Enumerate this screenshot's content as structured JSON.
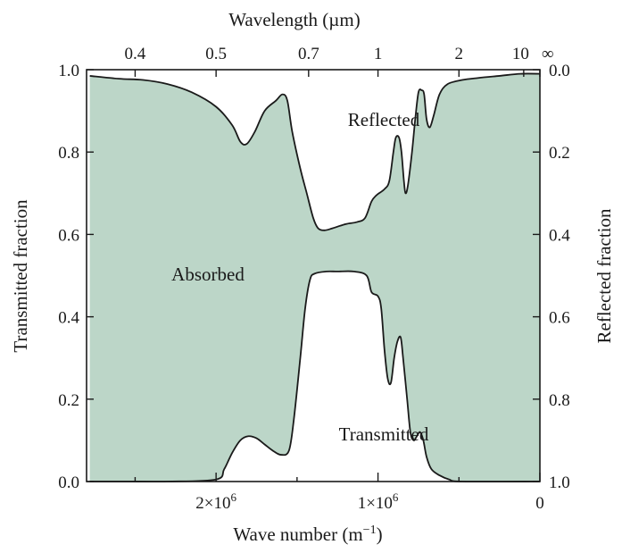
{
  "chart_data": {
    "type": "area",
    "fill_color": "#bcd6c8",
    "line_color": "#1a1a1a",
    "x_axis_bottom": {
      "label": "Wave number (m",
      "label_sup": "−1",
      "label_end": ")",
      "range": [
        2800000,
        0
      ],
      "ticks": [
        {
          "value": 2000000,
          "label": "2×10",
          "sup": "6"
        },
        {
          "value": 1000000,
          "label": "1×10",
          "sup": "6"
        },
        {
          "value": 0,
          "label": "0",
          "sup": ""
        }
      ],
      "minor_ticks": [
        2500000,
        1500000,
        500000
      ]
    },
    "x_axis_top": {
      "label": "Wavelength (µm)",
      "ticks": [
        {
          "value": 0.4,
          "label": "0.4"
        },
        {
          "value": 0.5,
          "label": "0.5"
        },
        {
          "value": 0.7,
          "label": "0.7"
        },
        {
          "value": 1,
          "label": "1"
        },
        {
          "value": 2,
          "label": "2"
        },
        {
          "value": 10,
          "label": "10"
        },
        {
          "value": "inf",
          "label": "∞"
        }
      ]
    },
    "y_axis_left": {
      "label": "Transmitted fraction",
      "range": [
        0,
        1
      ],
      "ticks": [
        "0.0",
        "0.2",
        "0.4",
        "0.6",
        "0.8",
        "1.0"
      ]
    },
    "y_axis_right": {
      "label": "Reflected fraction",
      "range": [
        1,
        0
      ],
      "ticks": [
        "0.0",
        "0.2",
        "0.4",
        "0.6",
        "0.8",
        "1.0"
      ]
    },
    "region_labels": {
      "reflected": "Reflected",
      "absorbed": "Absorbed",
      "transmitted": "Transmitted"
    },
    "series": [
      {
        "name": "Transmitted",
        "points": [
          [
            2780000,
            0.0
          ],
          [
            2550000,
            0.0
          ],
          [
            2300000,
            0.0
          ],
          [
            2000000,
            0.005
          ],
          [
            1950000,
            0.03
          ],
          [
            1900000,
            0.07
          ],
          [
            1850000,
            0.1
          ],
          [
            1800000,
            0.11
          ],
          [
            1750000,
            0.105
          ],
          [
            1700000,
            0.09
          ],
          [
            1650000,
            0.075
          ],
          [
            1600000,
            0.065
          ],
          [
            1550000,
            0.075
          ],
          [
            1520000,
            0.15
          ],
          [
            1480000,
            0.3
          ],
          [
            1450000,
            0.42
          ],
          [
            1420000,
            0.49
          ],
          [
            1390000,
            0.505
          ],
          [
            1320000,
            0.51
          ],
          [
            1250000,
            0.51
          ],
          [
            1150000,
            0.51
          ],
          [
            1070000,
            0.5
          ],
          [
            1040000,
            0.46
          ],
          [
            1000000,
            0.45
          ],
          [
            980000,
            0.42
          ],
          [
            960000,
            0.32
          ],
          [
            940000,
            0.25
          ],
          [
            920000,
            0.24
          ],
          [
            900000,
            0.3
          ],
          [
            880000,
            0.34
          ],
          [
            860000,
            0.35
          ],
          [
            845000,
            0.3
          ],
          [
            820000,
            0.2
          ],
          [
            800000,
            0.12
          ],
          [
            780000,
            0.1
          ],
          [
            760000,
            0.11
          ],
          [
            740000,
            0.12
          ],
          [
            720000,
            0.1
          ],
          [
            700000,
            0.06
          ],
          [
            670000,
            0.03
          ],
          [
            620000,
            0.015
          ],
          [
            560000,
            0.005
          ],
          [
            480000,
            0.0
          ],
          [
            0,
            0.0
          ]
        ]
      },
      {
        "name": "Reflected",
        "points": [
          [
            2780000,
            0.985
          ],
          [
            2600000,
            0.978
          ],
          [
            2450000,
            0.975
          ],
          [
            2300000,
            0.965
          ],
          [
            2150000,
            0.945
          ],
          [
            2000000,
            0.91
          ],
          [
            1900000,
            0.865
          ],
          [
            1850000,
            0.825
          ],
          [
            1810000,
            0.82
          ],
          [
            1760000,
            0.85
          ],
          [
            1700000,
            0.9
          ],
          [
            1630000,
            0.925
          ],
          [
            1590000,
            0.94
          ],
          [
            1560000,
            0.925
          ],
          [
            1530000,
            0.85
          ],
          [
            1480000,
            0.76
          ],
          [
            1440000,
            0.7
          ],
          [
            1400000,
            0.64
          ],
          [
            1370000,
            0.615
          ],
          [
            1330000,
            0.61
          ],
          [
            1280000,
            0.615
          ],
          [
            1200000,
            0.625
          ],
          [
            1130000,
            0.63
          ],
          [
            1080000,
            0.64
          ],
          [
            1040000,
            0.68
          ],
          [
            1010000,
            0.695
          ],
          [
            960000,
            0.71
          ],
          [
            930000,
            0.73
          ],
          [
            905000,
            0.8
          ],
          [
            890000,
            0.835
          ],
          [
            870000,
            0.835
          ],
          [
            855000,
            0.8
          ],
          [
            840000,
            0.73
          ],
          [
            830000,
            0.7
          ],
          [
            815000,
            0.72
          ],
          [
            790000,
            0.8
          ],
          [
            770000,
            0.88
          ],
          [
            750000,
            0.945
          ],
          [
            730000,
            0.95
          ],
          [
            715000,
            0.94
          ],
          [
            700000,
            0.88
          ],
          [
            680000,
            0.86
          ],
          [
            655000,
            0.89
          ],
          [
            620000,
            0.94
          ],
          [
            570000,
            0.965
          ],
          [
            480000,
            0.975
          ],
          [
            380000,
            0.98
          ],
          [
            250000,
            0.985
          ],
          [
            120000,
            0.99
          ],
          [
            0,
            0.99
          ]
        ]
      }
    ],
    "xlabel": "Wave number (m−1)",
    "ylabel": "Transmitted fraction",
    "ylabel_right": "Reflected fraction",
    "xlabel_top": "Wavelength (µm)",
    "grid": false,
    "legend": "none"
  }
}
